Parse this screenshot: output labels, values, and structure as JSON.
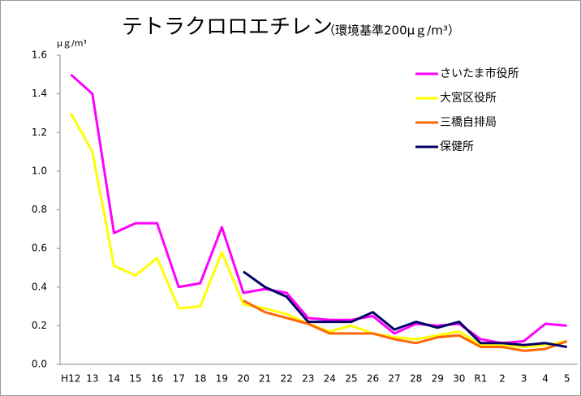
{
  "chart_data": {
    "type": "line",
    "title": "テトラクロロエチレン",
    "subtitle": "（環境基準200μｇ/m³）",
    "y_label": "μｇ/m³",
    "categories": [
      "H12",
      "13",
      "14",
      "15",
      "16",
      "17",
      "18",
      "19",
      "20",
      "21",
      "22",
      "23",
      "24",
      "25",
      "26",
      "27",
      "28",
      "29",
      "30",
      "R1",
      "2",
      "3",
      "4",
      "5"
    ],
    "series": [
      {
        "name": "さいたま市役所",
        "color": "#ff00ff",
        "values": [
          1.5,
          1.4,
          0.68,
          0.73,
          0.73,
          0.4,
          0.42,
          0.71,
          0.37,
          0.39,
          0.37,
          0.24,
          0.23,
          0.23,
          0.25,
          0.16,
          0.21,
          0.2,
          0.21,
          0.13,
          0.11,
          0.12,
          0.21,
          0.2
        ]
      },
      {
        "name": "大宮区役所",
        "color": "#ffff00",
        "values": [
          1.3,
          1.1,
          0.51,
          0.46,
          0.55,
          0.29,
          0.3,
          0.58,
          0.31,
          0.29,
          0.26,
          0.21,
          0.17,
          0.2,
          0.16,
          0.14,
          0.13,
          0.15,
          0.17,
          0.1,
          0.1,
          0.09,
          0.1,
          0.12
        ]
      },
      {
        "name": "三橋自排局",
        "color": "#ff6600",
        "values": [
          null,
          null,
          null,
          null,
          null,
          null,
          null,
          null,
          0.33,
          0.27,
          0.24,
          0.21,
          0.16,
          0.16,
          0.16,
          0.13,
          0.11,
          0.14,
          0.15,
          0.09,
          0.09,
          0.07,
          0.08,
          0.12
        ]
      },
      {
        "name": "保健所",
        "color": "#000066",
        "values": [
          null,
          null,
          null,
          null,
          null,
          null,
          null,
          null,
          0.48,
          0.4,
          0.35,
          0.22,
          0.22,
          0.22,
          0.27,
          0.18,
          0.22,
          0.19,
          0.22,
          0.11,
          0.11,
          0.1,
          0.11,
          0.09
        ]
      }
    ],
    "ylim": [
      0,
      1.6
    ],
    "yticks": [
      {
        "value": 0,
        "label": "0.0"
      },
      0.2,
      0.4,
      0.6,
      0.8,
      {
        "value": 1,
        "label": "1.0"
      },
      1.2,
      1.4,
      1.6
    ],
    "grid": false,
    "legend": "top-right"
  }
}
